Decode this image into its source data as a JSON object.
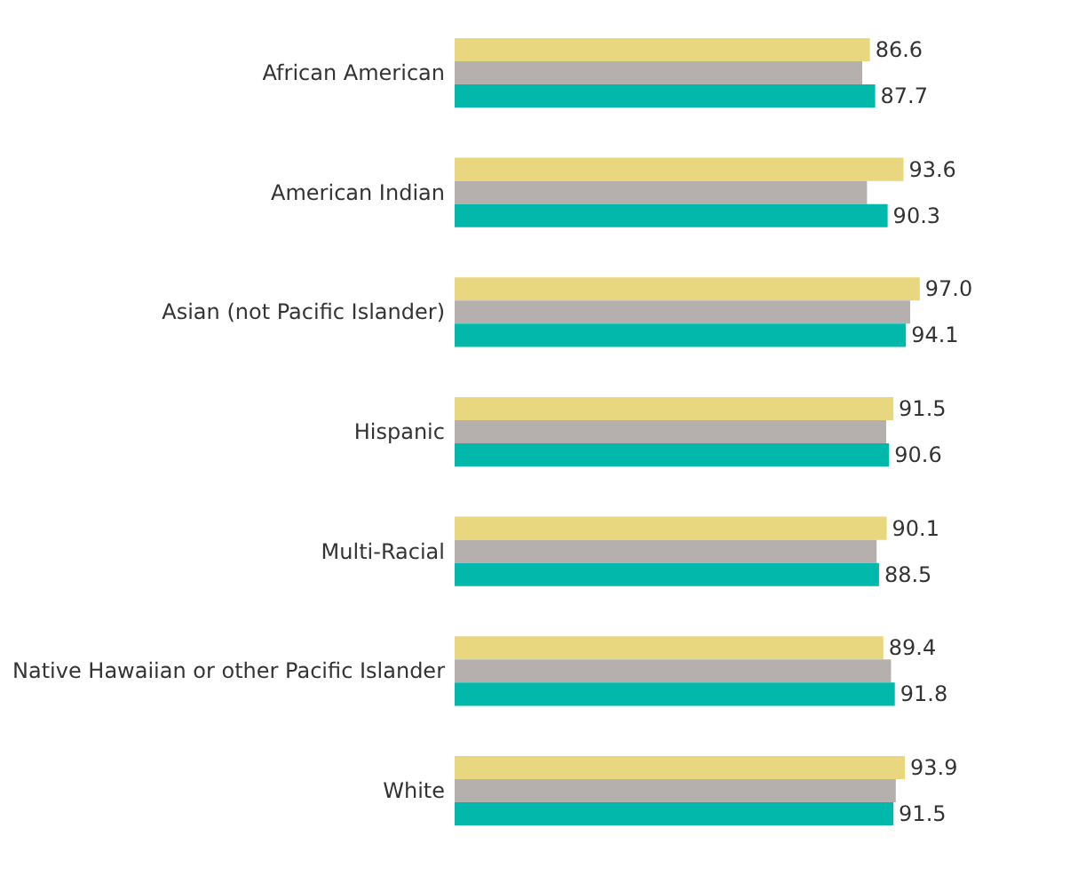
{
  "chart_data": {
    "type": "bar",
    "orientation": "horizontal",
    "categories": [
      "African American",
      "American Indian",
      "Asian (not Pacific Islander)",
      "Hispanic",
      "Multi-Racial",
      "Native Hawaiian or other Pacific Islander",
      "White"
    ],
    "series": [
      {
        "color": "#e8d77e",
        "values": [
          86.6,
          93.6,
          97.0,
          91.5,
          90.1,
          89.4,
          93.9
        ],
        "value_labels": [
          "86.6",
          "93.6",
          "97.0",
          "91.5",
          "90.1",
          "89.4",
          "93.9"
        ]
      },
      {
        "color": "#b5b0ae",
        "values": [
          85,
          86,
          95,
          90,
          88,
          91,
          92
        ]
      },
      {
        "color": "#01b8aa",
        "values": [
          87.7,
          90.3,
          94.1,
          90.6,
          88.5,
          91.8,
          91.5
        ],
        "value_labels": [
          "87.7",
          "90.3",
          "94.1",
          "90.6",
          "88.5",
          "91.8",
          "91.5"
        ]
      }
    ],
    "legend": false
  }
}
